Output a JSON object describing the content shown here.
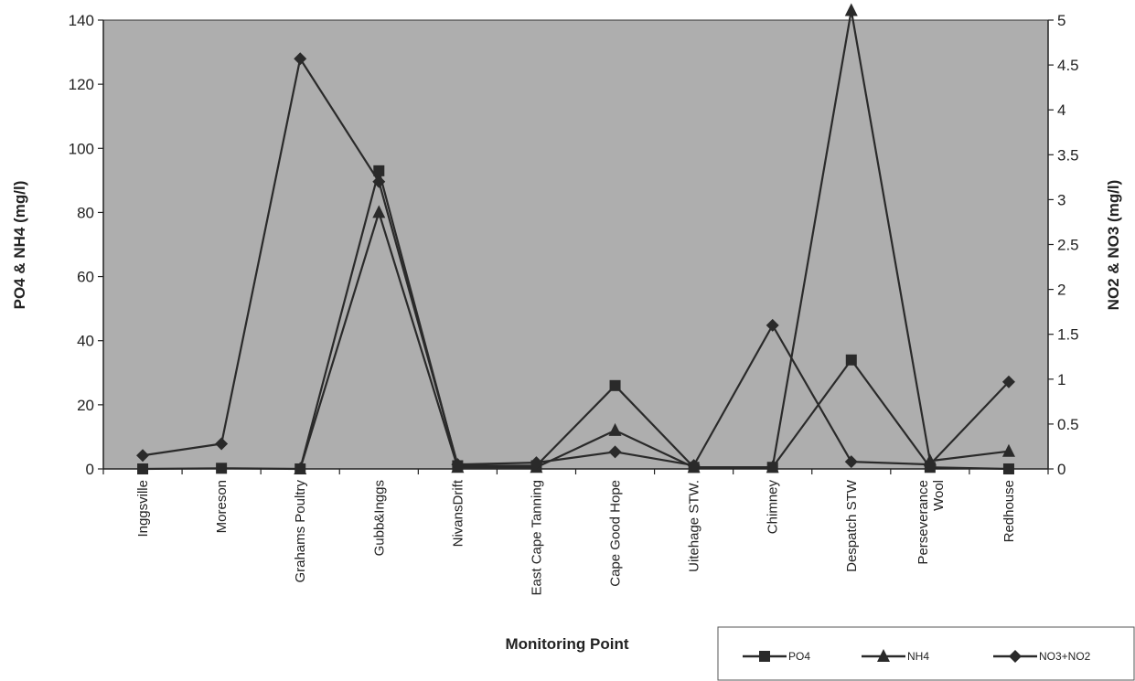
{
  "chart_data": {
    "type": "line",
    "title": "",
    "xlabel": "Monitoring Point",
    "ylabel_left": "PO4 & NH4 (mg/l)",
    "ylabel_right": "NO2 & NO3 (mg/l)",
    "ylim_left": [
      0,
      140
    ],
    "ylim_right": [
      0,
      5
    ],
    "yticks_left": [
      "0",
      "20",
      "40",
      "60",
      "80",
      "100",
      "120",
      "140"
    ],
    "yticks_right": [
      "0",
      "0.5",
      "1",
      "1.5",
      "2",
      "2.5",
      "3",
      "3.5",
      "4",
      "4.5",
      "5"
    ],
    "categories": [
      [
        "Inggsville"
      ],
      [
        "Moreson"
      ],
      [
        "Grahams Poultry"
      ],
      [
        "Gubb&Inggs"
      ],
      [
        "NivansDrift"
      ],
      [
        "East Cape Tanning"
      ],
      [
        "Cape Good Hope"
      ],
      [
        "Uitehage STW."
      ],
      [
        "Chimney"
      ],
      [
        "Despatch STW"
      ],
      [
        "Perseverance",
        "Wool"
      ],
      [
        "Redhouse"
      ]
    ],
    "series": [
      {
        "name": "PO4",
        "axis": "left",
        "marker": "square",
        "points": [
          [
            0,
            0
          ],
          [
            1,
            0.2
          ],
          [
            2,
            0
          ],
          [
            3,
            93
          ],
          [
            4,
            1
          ],
          [
            5,
            1
          ],
          [
            6,
            26
          ],
          [
            7,
            0.5
          ],
          [
            8,
            0.5
          ],
          [
            9,
            34
          ],
          [
            10,
            0.5
          ],
          [
            11,
            0
          ]
        ]
      },
      {
        "name": "NH4",
        "axis": "left",
        "marker": "triangle",
        "points": [
          [
            2,
            0
          ],
          [
            3,
            80
          ],
          [
            4,
            0.5
          ],
          [
            5,
            0.5
          ],
          [
            6,
            12
          ],
          [
            7,
            0.5
          ],
          [
            8,
            0.5
          ],
          [
            9,
            143
          ],
          [
            10,
            2.5
          ],
          [
            11,
            5.5
          ]
        ]
      },
      {
        "name": "NO3+NO2",
        "axis": "right",
        "marker": "diamond",
        "points": [
          [
            0,
            0.15
          ],
          [
            1,
            0.28
          ],
          [
            2,
            4.57
          ],
          [
            3,
            3.2
          ],
          [
            4,
            0.05
          ],
          [
            5,
            0.07
          ],
          [
            6,
            0.19
          ],
          [
            7,
            0.04
          ],
          [
            8,
            1.6
          ],
          [
            9,
            0.08
          ],
          [
            10,
            0.05
          ],
          [
            11,
            0.97
          ]
        ]
      }
    ],
    "grid": false,
    "legend_position": "bottom-right"
  }
}
